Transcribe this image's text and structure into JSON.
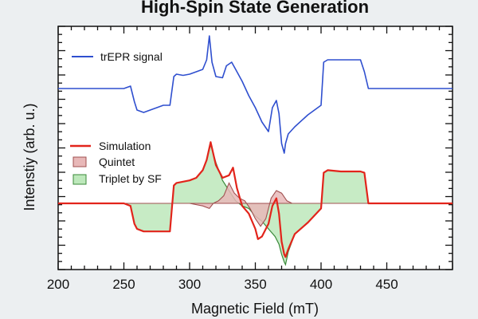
{
  "chart_data": {
    "type": "line",
    "title": "High-Spin State Generation",
    "xlabel": "Magnetic Field (mT)",
    "ylabel": "Intenstiy (arb. u.)",
    "xlim": [
      200,
      500
    ],
    "x_ticks": [
      "200",
      "250",
      "300",
      "350",
      "400",
      "450"
    ],
    "y_tick_labels": [],
    "grid": false,
    "legend_upper": [
      "trEPR signal"
    ],
    "legend_lower": [
      "Simulation",
      "Quintet",
      "Triplet by SF"
    ],
    "colors": {
      "trepr": "#2f4fcf",
      "simulation": "#e2241b",
      "quintet_fill": "#e8b8b8",
      "quintet_line": "#a05050",
      "triplet_fill": "#bde8bb",
      "triplet_line": "#3a8a3a",
      "axis": "#111111"
    },
    "series": [
      {
        "name": "trEPR signal",
        "x": [
          200,
          210,
          220,
          230,
          240,
          250,
          255,
          258,
          260,
          265,
          270,
          275,
          280,
          285,
          288,
          290,
          295,
          300,
          305,
          310,
          313,
          315,
          317,
          320,
          325,
          328,
          332,
          335,
          340,
          345,
          350,
          355,
          360,
          363,
          366,
          368,
          370,
          372,
          373,
          375,
          380,
          390,
          400,
          402,
          405,
          410,
          420,
          430,
          433,
          436,
          440,
          450,
          460,
          470,
          480,
          490,
          500
        ],
        "y": [
          0.56,
          0.56,
          0.56,
          0.56,
          0.56,
          0.56,
          0.58,
          0.45,
          0.38,
          0.36,
          0.38,
          0.4,
          0.42,
          0.42,
          0.66,
          0.68,
          0.67,
          0.68,
          0.7,
          0.72,
          0.8,
          1.0,
          0.78,
          0.66,
          0.65,
          0.75,
          0.78,
          0.72,
          0.62,
          0.5,
          0.4,
          0.28,
          0.2,
          0.4,
          0.46,
          0.35,
          0.1,
          0.02,
          0.1,
          0.18,
          0.24,
          0.34,
          0.42,
          0.78,
          0.8,
          0.8,
          0.8,
          0.8,
          0.7,
          0.56,
          0.56,
          0.56,
          0.56,
          0.56,
          0.56,
          0.56,
          0.56
        ]
      },
      {
        "name": "Simulation",
        "x": [
          200,
          250,
          255,
          258,
          260,
          265,
          275,
          282,
          285,
          288,
          290,
          300,
          305,
          310,
          313,
          316,
          320,
          325,
          330,
          333,
          336,
          340,
          345,
          350,
          352,
          355,
          358,
          360,
          363,
          366,
          368,
          370,
          372,
          373,
          375,
          380,
          390,
          400,
          402,
          405,
          415,
          425,
          430,
          433,
          436,
          450,
          500
        ],
        "y": [
          0.5,
          0.5,
          0.48,
          0.34,
          0.3,
          0.28,
          0.28,
          0.28,
          0.28,
          0.64,
          0.66,
          0.68,
          0.7,
          0.76,
          0.84,
          0.98,
          0.8,
          0.7,
          0.72,
          0.78,
          0.62,
          0.48,
          0.42,
          0.3,
          0.22,
          0.24,
          0.3,
          0.34,
          0.48,
          0.54,
          0.42,
          0.2,
          0.1,
          0.08,
          0.14,
          0.26,
          0.35,
          0.46,
          0.74,
          0.76,
          0.75,
          0.75,
          0.75,
          0.74,
          0.5,
          0.5,
          0.5
        ]
      },
      {
        "name": "Quintet",
        "x": [
          200,
          300,
          310,
          315,
          318,
          322,
          326,
          330,
          334,
          338,
          342,
          346,
          350,
          354,
          358,
          362,
          366,
          370,
          374,
          378,
          382,
          390,
          500
        ],
        "y": [
          0.5,
          0.5,
          0.48,
          0.46,
          0.5,
          0.52,
          0.56,
          0.66,
          0.58,
          0.54,
          0.52,
          0.46,
          0.38,
          0.32,
          0.38,
          0.54,
          0.6,
          0.58,
          0.52,
          0.5,
          0.5,
          0.5,
          0.5
        ]
      },
      {
        "name": "Triplet by SF",
        "x": [
          200,
          250,
          255,
          258,
          260,
          265,
          275,
          282,
          285,
          288,
          290,
          300,
          305,
          310,
          313,
          316,
          320,
          325,
          330,
          335,
          340,
          345,
          350,
          355,
          360,
          365,
          368,
          370,
          372,
          373,
          375,
          380,
          390,
          400,
          402,
          405,
          415,
          425,
          430,
          433,
          436,
          450,
          500
        ],
        "y": [
          0.5,
          0.5,
          0.48,
          0.34,
          0.3,
          0.28,
          0.28,
          0.28,
          0.28,
          0.64,
          0.66,
          0.68,
          0.7,
          0.76,
          0.84,
          0.96,
          0.82,
          0.68,
          0.6,
          0.52,
          0.48,
          0.46,
          0.4,
          0.36,
          0.3,
          0.24,
          0.18,
          0.1,
          0.04,
          0.02,
          0.12,
          0.26,
          0.35,
          0.46,
          0.74,
          0.76,
          0.75,
          0.75,
          0.75,
          0.74,
          0.5,
          0.5,
          0.5
        ]
      }
    ]
  }
}
